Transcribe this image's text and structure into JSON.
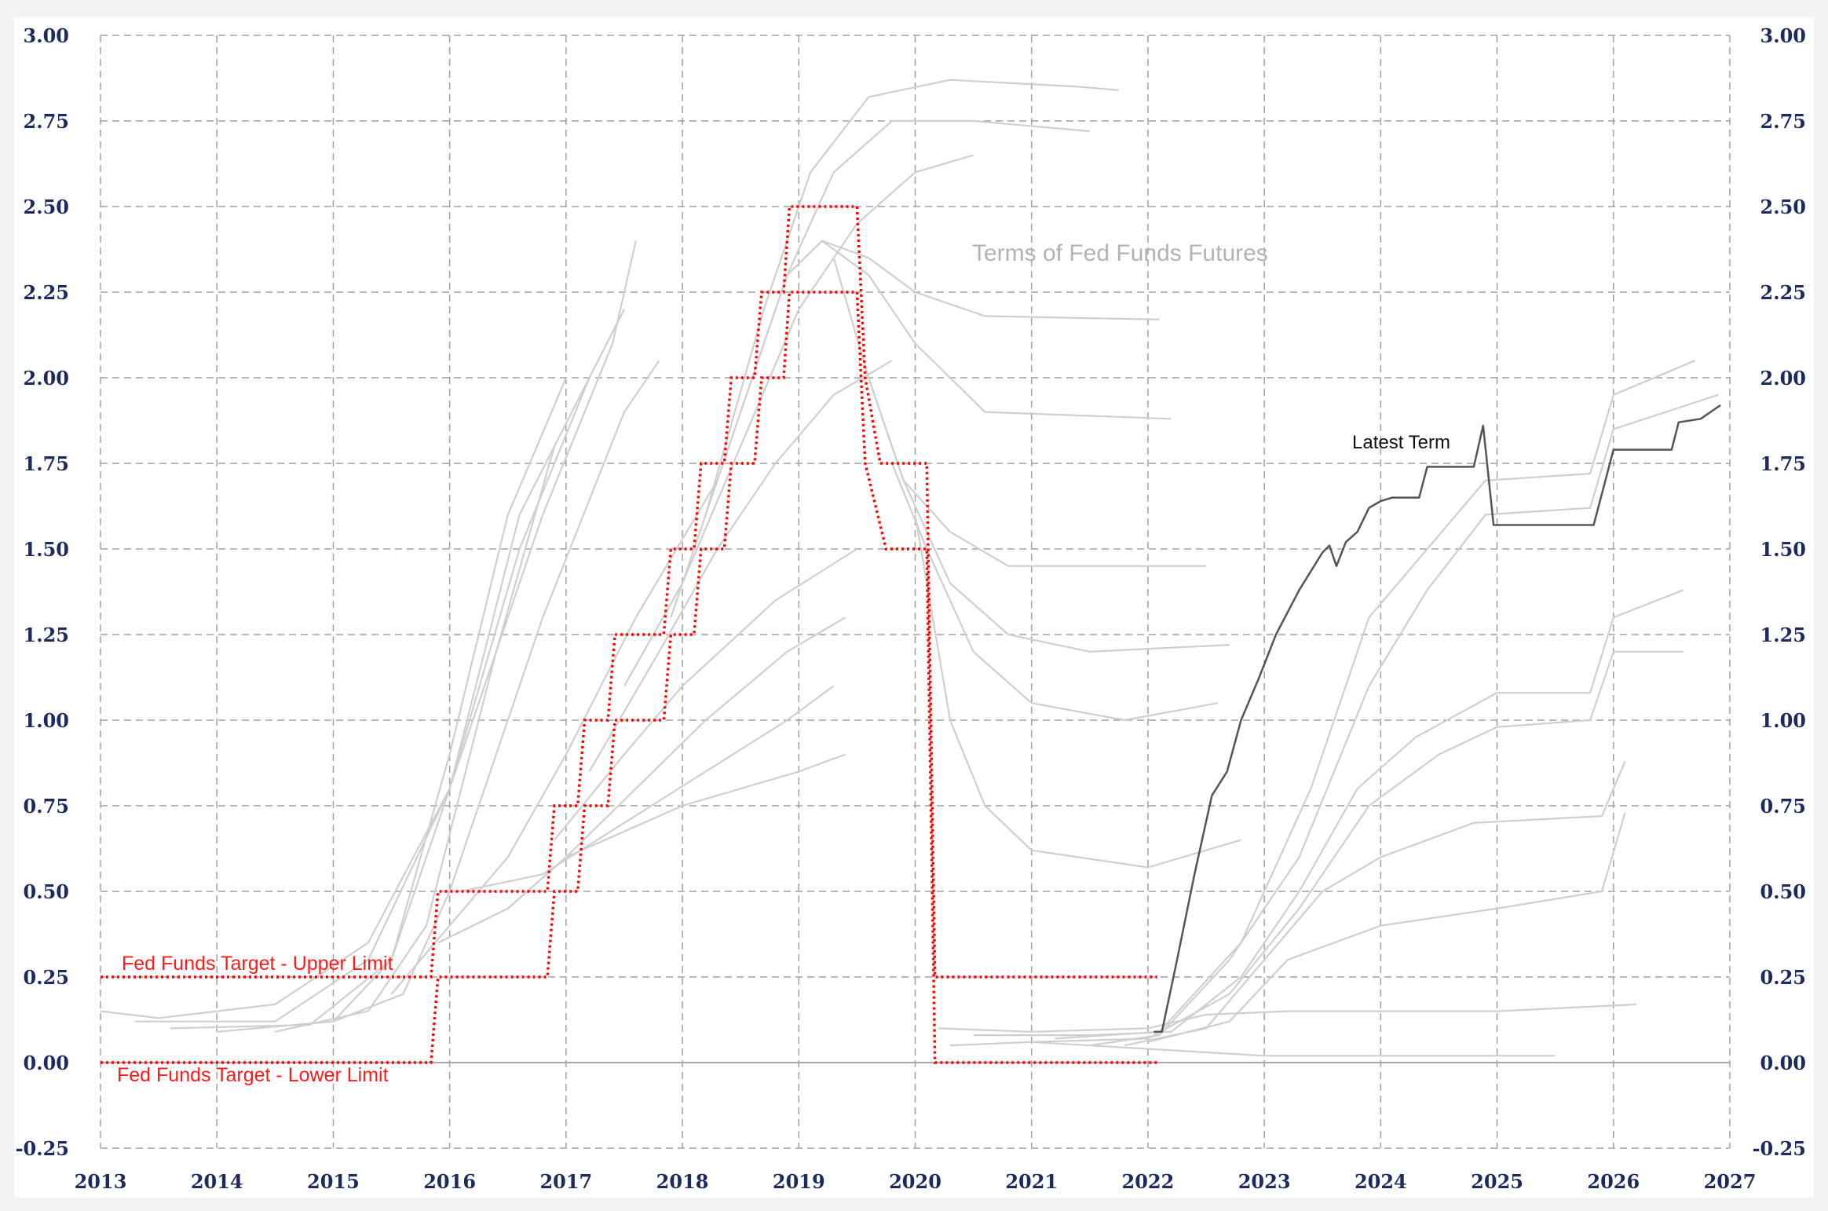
{
  "chart_data": {
    "type": "line",
    "title": "",
    "xlabel": "",
    "ylabel": "",
    "xlim": [
      2013,
      2027
    ],
    "ylim": [
      -0.25,
      3.0
    ],
    "grid": true,
    "x_ticks": [
      "2013",
      "2014",
      "2015",
      "2016",
      "2017",
      "2018",
      "2019",
      "2020",
      "2021",
      "2022",
      "2023",
      "2024",
      "2025",
      "2026",
      "2027"
    ],
    "y_ticks": [
      "3.00",
      "2.75",
      "2.50",
      "2.25",
      "2.00",
      "1.75",
      "1.50",
      "1.25",
      "1.00",
      "0.75",
      "0.50",
      "0.25",
      "0.00",
      "-0.25"
    ],
    "annotations": {
      "futures": "Terms of Fed Funds Futures",
      "latest": "Latest Term",
      "upper": "Fed Funds Target - Upper Limit",
      "lower": "Fed Funds Target - Lower Limit"
    },
    "colors": {
      "futures": "#cfcfcf",
      "latest": "#555555",
      "target": "#ff0000",
      "tick": "#1d2a5e"
    },
    "fed_funds_upper": [
      [
        2013,
        0.25
      ],
      [
        2015.84,
        0.25
      ],
      [
        2015.9,
        0.5
      ],
      [
        2016.84,
        0.5
      ],
      [
        2016.9,
        0.75
      ],
      [
        2017.1,
        0.75
      ],
      [
        2017.16,
        1.0
      ],
      [
        2017.36,
        1.0
      ],
      [
        2017.42,
        1.25
      ],
      [
        2017.84,
        1.25
      ],
      [
        2017.9,
        1.5
      ],
      [
        2018.1,
        1.5
      ],
      [
        2018.16,
        1.75
      ],
      [
        2018.36,
        1.75
      ],
      [
        2018.42,
        2.0
      ],
      [
        2018.62,
        2.0
      ],
      [
        2018.68,
        2.25
      ],
      [
        2018.87,
        2.25
      ],
      [
        2018.92,
        2.5
      ],
      [
        2019.5,
        2.5
      ],
      [
        2019.57,
        2.0
      ],
      [
        2019.7,
        1.75
      ],
      [
        2020.1,
        1.75
      ],
      [
        2020.17,
        0.25
      ],
      [
        2022.08,
        0.25
      ]
    ],
    "fed_funds_lower": [
      [
        2013,
        0.0
      ],
      [
        2015.84,
        0.0
      ],
      [
        2015.9,
        0.25
      ],
      [
        2016.84,
        0.25
      ],
      [
        2016.9,
        0.5
      ],
      [
        2017.1,
        0.5
      ],
      [
        2017.16,
        0.75
      ],
      [
        2017.36,
        0.75
      ],
      [
        2017.42,
        1.0
      ],
      [
        2017.84,
        1.0
      ],
      [
        2017.9,
        1.25
      ],
      [
        2018.1,
        1.25
      ],
      [
        2018.16,
        1.5
      ],
      [
        2018.36,
        1.5
      ],
      [
        2018.42,
        1.75
      ],
      [
        2018.62,
        1.75
      ],
      [
        2018.68,
        2.0
      ],
      [
        2018.87,
        2.0
      ],
      [
        2018.92,
        2.25
      ],
      [
        2019.5,
        2.25
      ],
      [
        2019.57,
        1.75
      ],
      [
        2019.75,
        1.5
      ],
      [
        2020.1,
        1.5
      ],
      [
        2020.17,
        0.0
      ],
      [
        2022.08,
        0.0
      ]
    ],
    "latest_term": [
      [
        2022.05,
        0.09
      ],
      [
        2022.12,
        0.09
      ],
      [
        2022.25,
        0.3
      ],
      [
        2022.4,
        0.55
      ],
      [
        2022.55,
        0.78
      ],
      [
        2022.68,
        0.85
      ],
      [
        2022.8,
        1.0
      ],
      [
        2022.95,
        1.12
      ],
      [
        2023.1,
        1.25
      ],
      [
        2023.3,
        1.38
      ],
      [
        2023.5,
        1.49
      ],
      [
        2023.56,
        1.51
      ],
      [
        2023.62,
        1.45
      ],
      [
        2023.7,
        1.52
      ],
      [
        2023.8,
        1.55
      ],
      [
        2023.9,
        1.62
      ],
      [
        2024.0,
        1.64
      ],
      [
        2024.1,
        1.65
      ],
      [
        2024.33,
        1.65
      ],
      [
        2024.4,
        1.74
      ],
      [
        2024.8,
        1.74
      ],
      [
        2024.88,
        1.86
      ],
      [
        2024.97,
        1.57
      ],
      [
        2025.83,
        1.57
      ],
      [
        2026.0,
        1.79
      ],
      [
        2026.5,
        1.79
      ],
      [
        2026.56,
        1.87
      ],
      [
        2026.75,
        1.88
      ],
      [
        2026.92,
        1.92
      ]
    ],
    "futures_terms": [
      [
        [
          2013,
          0.15
        ],
        [
          2013.5,
          0.13
        ],
        [
          2014.5,
          0.17
        ],
        [
          2015.3,
          0.35
        ],
        [
          2016,
          0.8
        ],
        [
          2016.8,
          1.6
        ],
        [
          2017.4,
          2.1
        ],
        [
          2017.6,
          2.4
        ]
      ],
      [
        [
          2013.3,
          0.12
        ],
        [
          2014.5,
          0.12
        ],
        [
          2015.3,
          0.3
        ],
        [
          2016,
          0.8
        ],
        [
          2016.6,
          1.5
        ],
        [
          2017.2,
          2.0
        ]
      ],
      [
        [
          2013.6,
          0.1
        ],
        [
          2014.8,
          0.11
        ],
        [
          2015.5,
          0.3
        ],
        [
          2016,
          0.9
        ],
        [
          2016.5,
          1.6
        ],
        [
          2017,
          2.0
        ]
      ],
      [
        [
          2014,
          0.09
        ],
        [
          2015,
          0.12
        ],
        [
          2015.5,
          0.3
        ],
        [
          2016,
          0.8
        ],
        [
          2016.6,
          1.6
        ],
        [
          2017.5,
          2.2
        ]
      ],
      [
        [
          2014.5,
          0.09
        ],
        [
          2015.3,
          0.15
        ],
        [
          2015.8,
          0.4
        ],
        [
          2016.4,
          1.2
        ],
        [
          2016.9,
          1.8
        ]
      ],
      [
        [
          2015,
          0.12
        ],
        [
          2015.6,
          0.2
        ],
        [
          2016,
          0.5
        ],
        [
          2016.8,
          1.3
        ],
        [
          2017.5,
          1.9
        ],
        [
          2017.8,
          2.05
        ]
      ],
      [
        [
          2015.5,
          0.2
        ],
        [
          2016,
          0.4
        ],
        [
          2016.5,
          0.6
        ],
        [
          2017,
          0.9
        ],
        [
          2017.6,
          1.3
        ],
        [
          2018.3,
          1.7
        ]
      ],
      [
        [
          2015.9,
          0.35
        ],
        [
          2016.5,
          0.45
        ],
        [
          2017,
          0.6
        ],
        [
          2017.6,
          0.8
        ],
        [
          2018.2,
          1.0
        ],
        [
          2018.9,
          1.2
        ],
        [
          2019.4,
          1.3
        ]
      ],
      [
        [
          2016.1,
          0.5
        ],
        [
          2016.8,
          0.55
        ],
        [
          2017.5,
          0.7
        ],
        [
          2018.2,
          0.85
        ],
        [
          2018.9,
          1.0
        ],
        [
          2019.3,
          1.1
        ]
      ],
      [
        [
          2016.5,
          0.45
        ],
        [
          2017,
          0.6
        ],
        [
          2018,
          0.75
        ],
        [
          2019,
          0.85
        ],
        [
          2019.4,
          0.9
        ]
      ],
      [
        [
          2016.9,
          0.65
        ],
        [
          2017.5,
          0.9
        ],
        [
          2018,
          1.1
        ],
        [
          2018.8,
          1.35
        ],
        [
          2019.5,
          1.5
        ]
      ],
      [
        [
          2017.2,
          0.85
        ],
        [
          2017.8,
          1.2
        ],
        [
          2018.3,
          1.5
        ],
        [
          2018.8,
          1.75
        ],
        [
          2019.3,
          1.95
        ],
        [
          2019.8,
          2.05
        ]
      ],
      [
        [
          2017.5,
          1.1
        ],
        [
          2018,
          1.4
        ],
        [
          2018.5,
          1.8
        ],
        [
          2019,
          2.2
        ],
        [
          2019.5,
          2.45
        ],
        [
          2020,
          2.6
        ],
        [
          2020.5,
          2.65
        ]
      ],
      [
        [
          2017.9,
          1.3
        ],
        [
          2018.4,
          1.8
        ],
        [
          2018.9,
          2.3
        ],
        [
          2019.3,
          2.6
        ],
        [
          2019.8,
          2.75
        ],
        [
          2020.5,
          2.75
        ],
        [
          2021.5,
          2.72
        ]
      ],
      [
        [
          2018.2,
          1.6
        ],
        [
          2018.7,
          2.2
        ],
        [
          2019.1,
          2.6
        ],
        [
          2019.6,
          2.82
        ],
        [
          2020.3,
          2.87
        ],
        [
          2021.4,
          2.85
        ],
        [
          2021.75,
          2.84
        ]
      ],
      [
        [
          2018.5,
          1.9
        ],
        [
          2018.9,
          2.3
        ],
        [
          2019.2,
          2.4
        ],
        [
          2019.6,
          2.35
        ],
        [
          2020,
          2.25
        ],
        [
          2020.6,
          2.18
        ],
        [
          2022.1,
          2.17
        ]
      ],
      [
        [
          2018.9,
          2.3
        ],
        [
          2019.2,
          2.4
        ],
        [
          2019.6,
          2.3
        ],
        [
          2020,
          2.1
        ],
        [
          2020.6,
          1.9
        ],
        [
          2022.2,
          1.88
        ]
      ],
      [
        [
          2019.3,
          2.35
        ],
        [
          2019.6,
          2.0
        ],
        [
          2019.9,
          1.7
        ],
        [
          2020.3,
          1.55
        ],
        [
          2020.8,
          1.45
        ],
        [
          2021.5,
          1.45
        ],
        [
          2022.5,
          1.45
        ]
      ],
      [
        [
          2019.6,
          2.0
        ],
        [
          2019.9,
          1.7
        ],
        [
          2020.3,
          1.4
        ],
        [
          2020.8,
          1.25
        ],
        [
          2021.5,
          1.2
        ],
        [
          2022.7,
          1.22
        ]
      ],
      [
        [
          2019.8,
          1.75
        ],
        [
          2020.1,
          1.5
        ],
        [
          2020.5,
          1.2
        ],
        [
          2021,
          1.05
        ],
        [
          2021.8,
          1.0
        ],
        [
          2022.6,
          1.05
        ]
      ],
      [
        [
          2020.0,
          1.6
        ],
        [
          2020.3,
          1.0
        ],
        [
          2020.6,
          0.75
        ],
        [
          2021,
          0.62
        ],
        [
          2022,
          0.57
        ],
        [
          2022.8,
          0.65
        ]
      ],
      [
        [
          2020.2,
          0.1
        ],
        [
          2021,
          0.09
        ],
        [
          2022,
          0.1
        ],
        [
          2022.5,
          0.14
        ],
        [
          2023.2,
          0.15
        ],
        [
          2025,
          0.15
        ],
        [
          2026.2,
          0.17
        ]
      ],
      [
        [
          2020.3,
          0.05
        ],
        [
          2021,
          0.06
        ],
        [
          2022,
          0.04
        ],
        [
          2023,
          0.02
        ],
        [
          2025.5,
          0.02
        ]
      ],
      [
        [
          2020.5,
          0.08
        ],
        [
          2021.5,
          0.08
        ],
        [
          2022.2,
          0.09
        ],
        [
          2022.8,
          0.25
        ],
        [
          2023.3,
          0.5
        ],
        [
          2023.8,
          0.8
        ],
        [
          2024.3,
          0.95
        ],
        [
          2025,
          1.08
        ],
        [
          2025.8,
          1.08
        ],
        [
          2026,
          1.3
        ],
        [
          2026.6,
          1.38
        ]
      ],
      [
        [
          2021,
          0.06
        ],
        [
          2022,
          0.07
        ],
        [
          2022.7,
          0.2
        ],
        [
          2023.3,
          0.45
        ],
        [
          2023.9,
          0.75
        ],
        [
          2024.5,
          0.9
        ],
        [
          2025,
          0.98
        ],
        [
          2025.8,
          1.0
        ],
        [
          2026,
          1.2
        ],
        [
          2026.6,
          1.2
        ]
      ],
      [
        [
          2021.2,
          0.07
        ],
        [
          2022.1,
          0.09
        ],
        [
          2022.8,
          0.35
        ],
        [
          2023.4,
          0.8
        ],
        [
          2023.9,
          1.3
        ],
        [
          2024.4,
          1.5
        ],
        [
          2024.9,
          1.7
        ],
        [
          2025.8,
          1.72
        ],
        [
          2026,
          1.95
        ],
        [
          2026.7,
          2.05
        ]
      ],
      [
        [
          2021.5,
          0.05
        ],
        [
          2022.1,
          0.08
        ],
        [
          2022.7,
          0.3
        ],
        [
          2023.3,
          0.6
        ],
        [
          2023.9,
          1.1
        ],
        [
          2024.4,
          1.38
        ],
        [
          2024.9,
          1.6
        ],
        [
          2025.8,
          1.62
        ],
        [
          2026,
          1.85
        ],
        [
          2026.9,
          1.95
        ]
      ],
      [
        [
          2021.8,
          0.05
        ],
        [
          2022.5,
          0.1
        ],
        [
          2023,
          0.3
        ],
        [
          2023.5,
          0.5
        ],
        [
          2024,
          0.6
        ],
        [
          2024.8,
          0.7
        ],
        [
          2025.9,
          0.72
        ],
        [
          2026.1,
          0.88
        ]
      ],
      [
        [
          2022,
          0.06
        ],
        [
          2022.7,
          0.12
        ],
        [
          2023.2,
          0.3
        ],
        [
          2024,
          0.4
        ],
        [
          2025,
          0.45
        ],
        [
          2025.9,
          0.5
        ],
        [
          2026.1,
          0.73
        ]
      ]
    ]
  }
}
